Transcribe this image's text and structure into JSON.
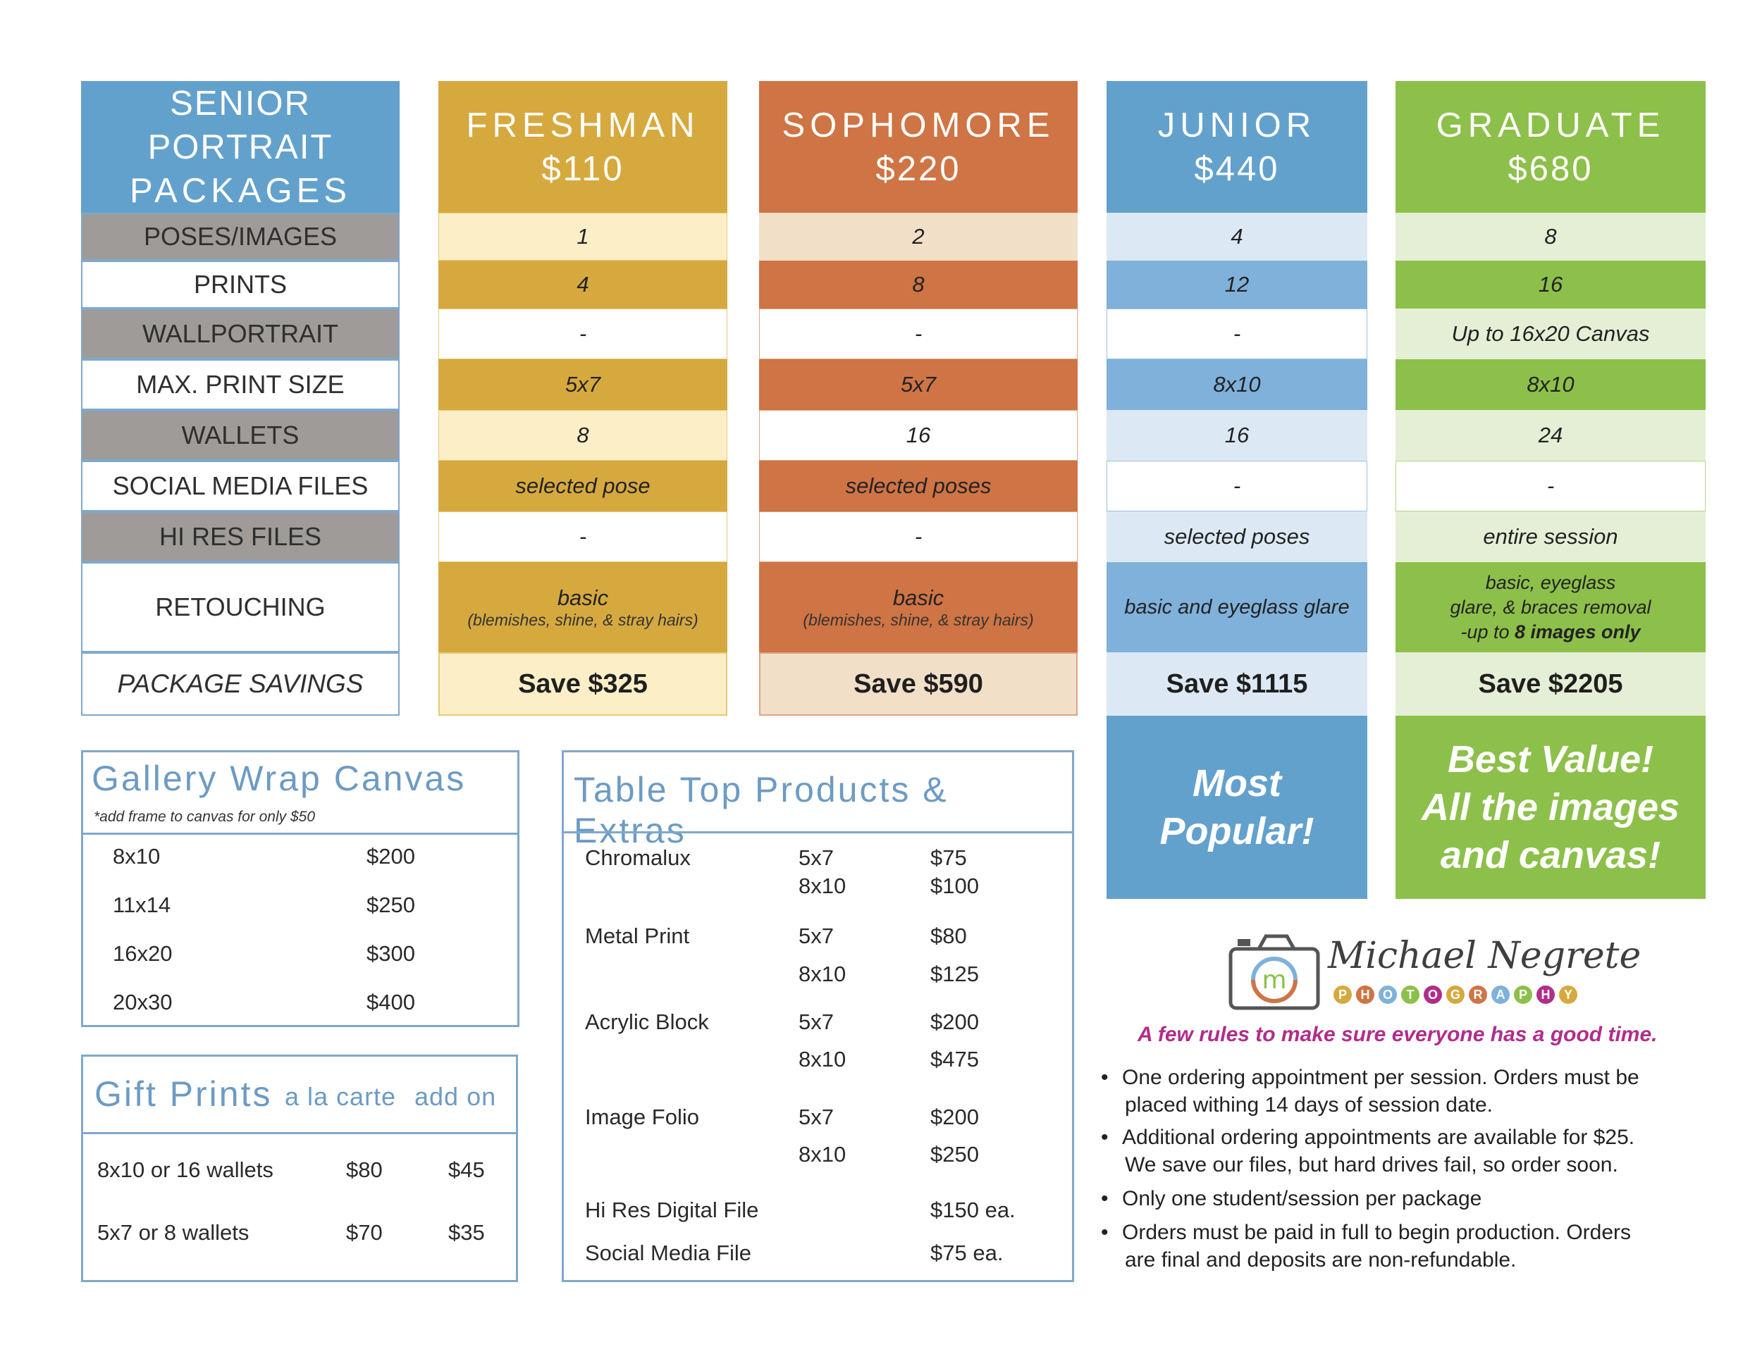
{
  "colors": {
    "blue_header": "#63a1cd",
    "gold": "#d6a93f",
    "gold_light": "#fcefc8",
    "orange": "#cf7444",
    "orange_light": "#f2dfc8",
    "blue_mid": "#7fb1da",
    "blue_light": "#dce9f4",
    "green": "#8dc04a",
    "green_light": "#e5efd6",
    "gray_label": "#9e9b98",
    "accent_pink": "#b02d8c"
  },
  "packages": {
    "corner_title_line1": "SENIOR PORTRAIT",
    "corner_title_line2": "PACKAGES",
    "row_labels": [
      "POSES/IMAGES",
      "PRINTS",
      "WALLPORTRAIT",
      "MAX. PRINT SIZE",
      "WALLETS",
      "SOCIAL MEDIA FILES",
      "HI RES FILES",
      "RETOUCHING",
      "PACKAGE SAVINGS"
    ],
    "freshman": {
      "name": "FRESHMAN",
      "price": "$110",
      "poses": "1",
      "prints": "4",
      "wallportrait": "-",
      "max_print": "5x7",
      "wallets": "8",
      "social": "selected pose",
      "hires": "-",
      "retouch_main": "basic",
      "retouch_note": "(blemishes, shine, & stray hairs)",
      "savings": "Save $325"
    },
    "sophomore": {
      "name": "SOPHOMORE",
      "price": "$220",
      "poses": "2",
      "prints": "8",
      "wallportrait": "-",
      "max_print": "5x7",
      "wallets": "16",
      "social": "selected poses",
      "hires": "-",
      "retouch_main": "basic",
      "retouch_note": "(blemishes, shine, & stray hairs)",
      "savings": "Save $590"
    },
    "junior": {
      "name": "JUNIOR",
      "price": "$440",
      "poses": "4",
      "prints": "12",
      "wallportrait": "-",
      "max_print": "8x10",
      "wallets": "16",
      "social": "-",
      "hires": "selected poses",
      "retouch_main": "basic and eyeglass glare",
      "savings": "Save $1115",
      "promo_line1": "Most",
      "promo_line2": "Popular!"
    },
    "graduate": {
      "name": "GRADUATE",
      "price": "$680",
      "poses": "8",
      "prints": "16",
      "wallportrait": "Up to 16x20 Canvas",
      "max_print": "8x10",
      "wallets": "24",
      "social": "-",
      "hires": "entire session",
      "retouch_line1": "basic, eyeglass",
      "retouch_line2": "glare, & braces removal",
      "retouch_line3_a": "-up to ",
      "retouch_line3_b": "8 images only",
      "savings": "Save $2205",
      "promo_line1": "Best Value!",
      "promo_line2": "All the images",
      "promo_line3": "and canvas!"
    }
  },
  "gallery_wrap": {
    "title": "Gallery Wrap Canvas",
    "note": "*add frame to canvas for only $50",
    "rows": [
      {
        "size": "8x10",
        "price": "$200"
      },
      {
        "size": "11x14",
        "price": "$250"
      },
      {
        "size": "16x20",
        "price": "$300"
      },
      {
        "size": "20x30",
        "price": "$400"
      }
    ]
  },
  "gift_prints": {
    "title": "Gift Prints",
    "col1": "a la carte",
    "col2": "add on",
    "rows": [
      {
        "item": "8x10 or 16 wallets",
        "a_la_carte": "$80",
        "add_on": "$45"
      },
      {
        "item": "5x7 or 8 wallets",
        "a_la_carte": "$70",
        "add_on": "$35"
      }
    ]
  },
  "table_top": {
    "title": "Table Top Products & Extras",
    "chromalux": {
      "name": "Chromalux",
      "size1": "5x7",
      "price1": "$75",
      "size2": "8x10",
      "price2": "$100"
    },
    "metal": {
      "name": "Metal Print",
      "size1": "5x7",
      "price1": "$80",
      "size2": "8x10",
      "price2": "$125"
    },
    "acrylic": {
      "name": "Acrylic Block",
      "size1": "5x7",
      "price1": "$200",
      "size2": "8x10",
      "price2": "$475"
    },
    "folio": {
      "name": "Image Folio",
      "size1": "5x7",
      "price1": "$200",
      "size2": "8x10",
      "price2": "$250"
    },
    "hires": {
      "name": "Hi Res Digital File",
      "price": "$150 ea."
    },
    "social": {
      "name": "Social Media File",
      "price": "$75 ea."
    }
  },
  "logo": {
    "name": "Michael Negrete",
    "sub_letters": [
      "P",
      "H",
      "O",
      "T",
      "O",
      "G",
      "R",
      "A",
      "P",
      "H",
      "Y"
    ],
    "sub_colors": [
      "#d6a93f",
      "#cf7444",
      "#7fb1da",
      "#8dc04a",
      "#b02d8c",
      "#d6a93f",
      "#cf7444",
      "#7fb1da",
      "#8dc04a",
      "#b02d8c",
      "#d6a93f"
    ],
    "camera_letter": "m"
  },
  "rules": {
    "heading": "A few rules to make sure everyone has a good time.",
    "r1_a": "One ordering appointment per session.  Orders must be",
    "r1_b": "placed withing 14 days of session date.",
    "r2_a": "Additional ordering appointments are available for $25.",
    "r2_b": "We save our files, but hard drives fail, so order soon.",
    "r3_a": "Only one student/session per package",
    "r4_a": "Orders must be paid in full to begin production.  Orders",
    "r4_b": "are final and deposits are non-refundable.",
    "bullet": "•"
  }
}
